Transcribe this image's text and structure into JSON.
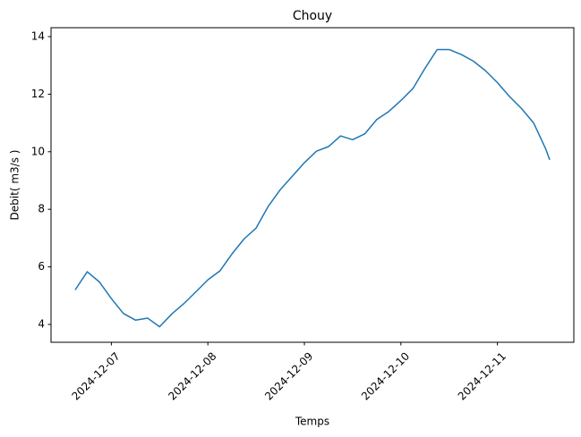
{
  "chart_data": {
    "type": "line",
    "title": "Chouy",
    "xlabel": "Temps",
    "ylabel": "Debit( m3/s )",
    "x": [
      "2024-12-06T15:00",
      "2024-12-06T18:00",
      "2024-12-06T21:00",
      "2024-12-07T00:00",
      "2024-12-07T03:00",
      "2024-12-07T06:00",
      "2024-12-07T09:00",
      "2024-12-07T12:00",
      "2024-12-07T15:00",
      "2024-12-07T18:00",
      "2024-12-07T21:00",
      "2024-12-08T00:00",
      "2024-12-08T03:00",
      "2024-12-08T06:00",
      "2024-12-08T09:00",
      "2024-12-08T12:00",
      "2024-12-08T15:00",
      "2024-12-08T18:00",
      "2024-12-08T21:00",
      "2024-12-09T00:00",
      "2024-12-09T03:00",
      "2024-12-09T06:00",
      "2024-12-09T09:00",
      "2024-12-09T12:00",
      "2024-12-09T15:00",
      "2024-12-09T18:00",
      "2024-12-09T21:00",
      "2024-12-10T00:00",
      "2024-12-10T03:00",
      "2024-12-10T06:00",
      "2024-12-10T09:00",
      "2024-12-10T12:00",
      "2024-12-10T15:00",
      "2024-12-10T18:00",
      "2024-12-10T21:00",
      "2024-12-11T00:00",
      "2024-12-11T03:00",
      "2024-12-11T06:00",
      "2024-12-11T09:00",
      "2024-12-11T12:00",
      "2024-12-11T13:00"
    ],
    "series": [
      {
        "name": "Debit",
        "color": "#1f77b4",
        "values": [
          5.2,
          5.83,
          5.48,
          4.9,
          4.38,
          4.15,
          4.22,
          3.92,
          4.36,
          4.72,
          5.13,
          5.55,
          5.86,
          6.45,
          6.97,
          7.35,
          8.1,
          8.68,
          9.15,
          9.62,
          10.02,
          10.18,
          10.55,
          10.42,
          10.62,
          11.12,
          11.4,
          11.78,
          12.2,
          12.9,
          13.55,
          13.55,
          13.38,
          13.15,
          12.82,
          12.4,
          11.92,
          11.5,
          11.0,
          10.1,
          9.72
        ]
      }
    ],
    "xlim": [
      "2024-12-06T09:00",
      "2024-12-11T19:00"
    ],
    "xticks": [
      "2024-12-07",
      "2024-12-08",
      "2024-12-09",
      "2024-12-10",
      "2024-12-11"
    ],
    "ylim": [
      3.38,
      14.31
    ],
    "yticks": [
      4,
      6,
      8,
      10,
      12,
      14
    ],
    "grid": false
  }
}
